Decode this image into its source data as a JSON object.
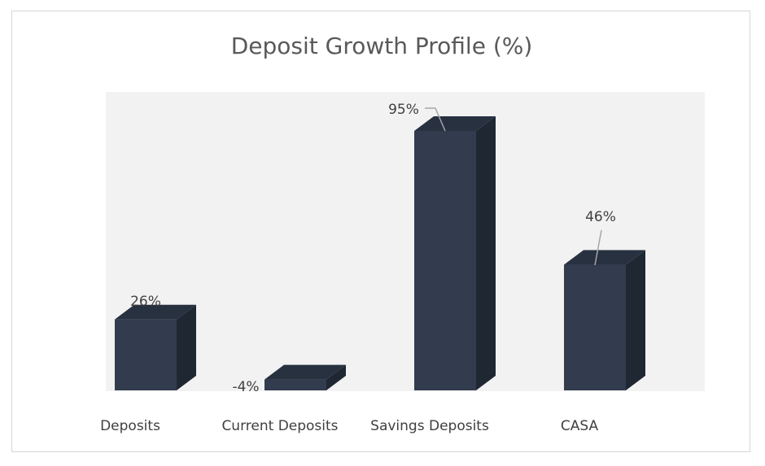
{
  "chart_data": {
    "type": "bar",
    "title": "Deposit Growth Profile (%)",
    "categories": [
      "Deposits",
      "Current Deposits",
      "Savings Deposits",
      "CASA"
    ],
    "values": [
      26,
      -4,
      95,
      46
    ],
    "data_labels": [
      "26%",
      "-4%",
      "95%",
      "46%"
    ],
    "xlabel": "",
    "ylabel": "",
    "legend": "none",
    "grid": false,
    "three_d": true,
    "colors": {
      "bar_front": "#323c4e",
      "bar_top": "#283140",
      "bar_side": "#1f2733",
      "plot_area": "#f2f2f2",
      "leader_line": "#a6a6a6"
    }
  }
}
